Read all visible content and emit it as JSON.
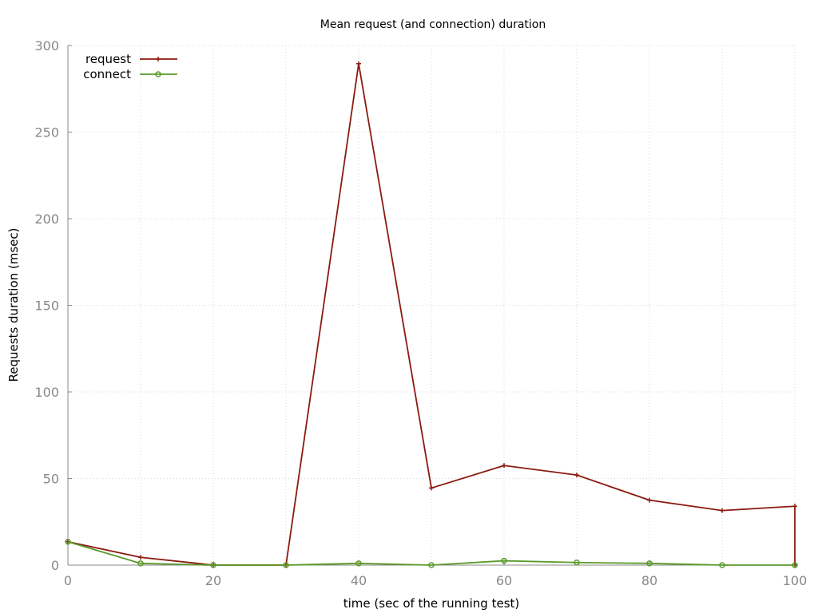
{
  "chart_data": {
    "type": "line",
    "title": "Mean request (and connection) duration",
    "xlabel": "time (sec of the running test)",
    "ylabel": "Requests duration (msec)",
    "xlim": [
      0,
      100
    ],
    "ylim": [
      0,
      300
    ],
    "x_ticks": [
      0,
      20,
      40,
      60,
      80,
      100
    ],
    "y_ticks": [
      0,
      50,
      100,
      150,
      200,
      250,
      300
    ],
    "grid": true,
    "legend_position": "top-left",
    "series": [
      {
        "name": "request",
        "color": "#8b1a10",
        "marker": "plus",
        "x": [
          0,
          10,
          20,
          30,
          40,
          50,
          60,
          70,
          80,
          90,
          100,
          100
        ],
        "y": [
          13.5,
          4.5,
          0,
          0,
          289.5,
          44.5,
          57.5,
          52,
          37.5,
          31.5,
          34,
          0
        ]
      },
      {
        "name": "connect",
        "color": "#5a9a2a",
        "marker": "circle",
        "x": [
          0,
          10,
          20,
          30,
          40,
          50,
          60,
          70,
          80,
          90,
          100
        ],
        "y": [
          13.5,
          1,
          0,
          0,
          1,
          0,
          2.5,
          1.5,
          1,
          0,
          0
        ]
      }
    ]
  }
}
